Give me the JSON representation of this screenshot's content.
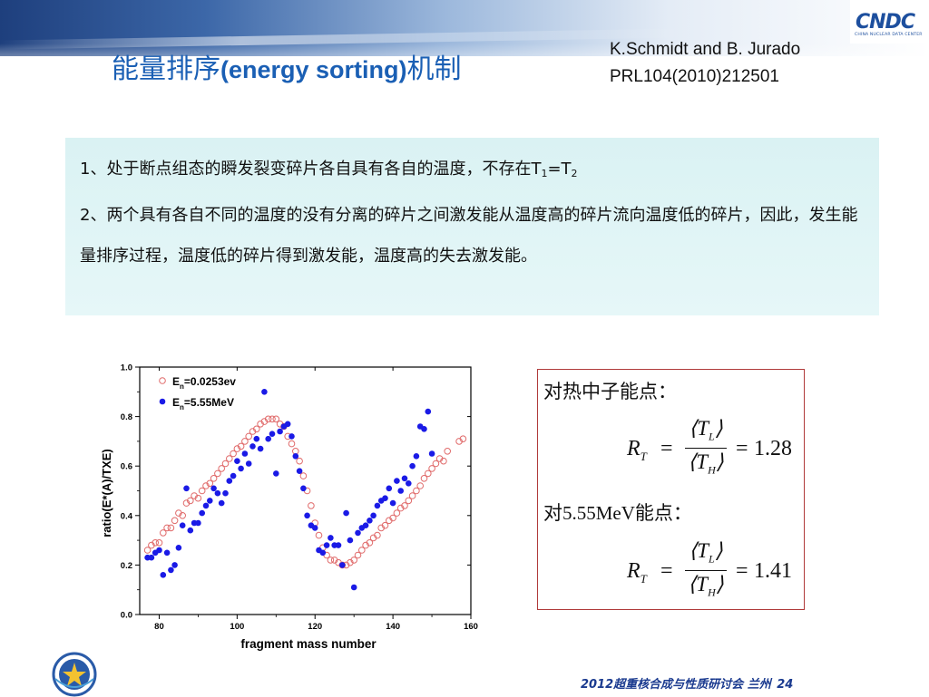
{
  "header": {
    "logo": {
      "text": "CNDC",
      "subtitle": "CHINA NUCLEAR DATA CENTER"
    },
    "reference": {
      "line1": "K.Schmidt and B. Jurado",
      "line2": "PRL104(2010)212501"
    },
    "title_cn_1": "能量排序",
    "title_en": "(energy sorting)",
    "title_cn_2": "机制"
  },
  "info_box": {
    "p1_prefix": "1、处于断点组态的瞬发裂变碎片各自具有各自的温度，不存在T",
    "p1_sub1": "1",
    "p1_eq": "=T",
    "p1_sub2": "2",
    "p2": "2、两个具有各自不同的温度的没有分离的碎片之间激发能从温度高的碎片流向温度低的碎片，因此，发生能量排序过程，温度低的碎片得到激发能，温度高的失去激发能。"
  },
  "chart": {
    "ylabel": "ratio(E*(A)/TXE)",
    "xlabel": "fragment mass number",
    "legend": [
      {
        "label_main": "E",
        "label_sub": "n",
        "label_rest": "=0.0253ev"
      },
      {
        "label_main": "E",
        "label_sub": "n",
        "label_rest": "=5.55MeV"
      }
    ]
  },
  "chart_data": {
    "type": "scatter",
    "x_range": [
      75,
      160
    ],
    "y_range": [
      0.0,
      1.0
    ],
    "y_ticks": [
      "0.0",
      "0.2",
      "0.4",
      "0.6",
      "0.8",
      "1.0"
    ],
    "x_ticks": [
      "80",
      "100",
      "120",
      "140",
      "160"
    ],
    "legend_position": "top-left",
    "series": [
      {
        "name": "E_n=0.0253ev",
        "marker": "open circle",
        "color": "#e06a6a",
        "points": [
          [
            77,
            0.26
          ],
          [
            78,
            0.28
          ],
          [
            79,
            0.29
          ],
          [
            80,
            0.29
          ],
          [
            81,
            0.33
          ],
          [
            82,
            0.35
          ],
          [
            83,
            0.35
          ],
          [
            84,
            0.38
          ],
          [
            85,
            0.41
          ],
          [
            86,
            0.4
          ],
          [
            87,
            0.45
          ],
          [
            88,
            0.46
          ],
          [
            89,
            0.48
          ],
          [
            90,
            0.47
          ],
          [
            91,
            0.5
          ],
          [
            92,
            0.52
          ],
          [
            93,
            0.53
          ],
          [
            94,
            0.55
          ],
          [
            95,
            0.57
          ],
          [
            96,
            0.59
          ],
          [
            97,
            0.61
          ],
          [
            98,
            0.63
          ],
          [
            99,
            0.65
          ],
          [
            100,
            0.67
          ],
          [
            101,
            0.68
          ],
          [
            102,
            0.7
          ],
          [
            103,
            0.72
          ],
          [
            104,
            0.74
          ],
          [
            105,
            0.75
          ],
          [
            106,
            0.77
          ],
          [
            107,
            0.78
          ],
          [
            108,
            0.79
          ],
          [
            109,
            0.79
          ],
          [
            110,
            0.79
          ],
          [
            111,
            0.77
          ],
          [
            112,
            0.76
          ],
          [
            113,
            0.72
          ],
          [
            114,
            0.69
          ],
          [
            115,
            0.66
          ],
          [
            116,
            0.62
          ],
          [
            117,
            0.56
          ],
          [
            118,
            0.5
          ],
          [
            119,
            0.44
          ],
          [
            120,
            0.37
          ],
          [
            121,
            0.32
          ],
          [
            122,
            0.27
          ],
          [
            123,
            0.24
          ],
          [
            124,
            0.22
          ],
          [
            125,
            0.22
          ],
          [
            126,
            0.21
          ],
          [
            127,
            0.2
          ],
          [
            128,
            0.2
          ],
          [
            129,
            0.21
          ],
          [
            130,
            0.22
          ],
          [
            131,
            0.24
          ],
          [
            132,
            0.26
          ],
          [
            133,
            0.28
          ],
          [
            134,
            0.29
          ],
          [
            135,
            0.31
          ],
          [
            136,
            0.32
          ],
          [
            137,
            0.35
          ],
          [
            138,
            0.36
          ],
          [
            139,
            0.38
          ],
          [
            140,
            0.39
          ],
          [
            141,
            0.41
          ],
          [
            142,
            0.43
          ],
          [
            143,
            0.44
          ],
          [
            144,
            0.46
          ],
          [
            145,
            0.48
          ],
          [
            146,
            0.5
          ],
          [
            147,
            0.52
          ],
          [
            148,
            0.55
          ],
          [
            149,
            0.57
          ],
          [
            150,
            0.59
          ],
          [
            151,
            0.61
          ],
          [
            152,
            0.63
          ],
          [
            153,
            0.62
          ],
          [
            154,
            0.66
          ],
          [
            157,
            0.7
          ],
          [
            158,
            0.71
          ]
        ]
      },
      {
        "name": "E_n=5.55MeV",
        "marker": "filled circle",
        "color": "#1a1ae6",
        "points": [
          [
            77,
            0.23
          ],
          [
            78,
            0.23
          ],
          [
            79,
            0.25
          ],
          [
            80,
            0.26
          ],
          [
            81,
            0.16
          ],
          [
            82,
            0.25
          ],
          [
            83,
            0.18
          ],
          [
            84,
            0.2
          ],
          [
            85,
            0.27
          ],
          [
            86,
            0.36
          ],
          [
            87,
            0.51
          ],
          [
            88,
            0.34
          ],
          [
            89,
            0.37
          ],
          [
            90,
            0.37
          ],
          [
            91,
            0.41
          ],
          [
            92,
            0.44
          ],
          [
            93,
            0.46
          ],
          [
            94,
            0.51
          ],
          [
            95,
            0.49
          ],
          [
            96,
            0.45
          ],
          [
            97,
            0.49
          ],
          [
            98,
            0.54
          ],
          [
            99,
            0.56
          ],
          [
            100,
            0.62
          ],
          [
            101,
            0.59
          ],
          [
            102,
            0.65
          ],
          [
            103,
            0.61
          ],
          [
            104,
            0.68
          ],
          [
            105,
            0.71
          ],
          [
            106,
            0.67
          ],
          [
            107,
            0.9
          ],
          [
            108,
            0.71
          ],
          [
            109,
            0.73
          ],
          [
            110,
            0.57
          ],
          [
            111,
            0.74
          ],
          [
            112,
            0.76
          ],
          [
            113,
            0.77
          ],
          [
            114,
            0.72
          ],
          [
            115,
            0.64
          ],
          [
            116,
            0.58
          ],
          [
            117,
            0.51
          ],
          [
            118,
            0.4
          ],
          [
            119,
            0.36
          ],
          [
            120,
            0.35
          ],
          [
            121,
            0.26
          ],
          [
            122,
            0.25
          ],
          [
            123,
            0.28
          ],
          [
            124,
            0.31
          ],
          [
            125,
            0.28
          ],
          [
            126,
            0.28
          ],
          [
            127,
            0.2
          ],
          [
            128,
            0.41
          ],
          [
            129,
            0.3
          ],
          [
            130,
            0.11
          ],
          [
            131,
            0.33
          ],
          [
            132,
            0.35
          ],
          [
            133,
            0.36
          ],
          [
            134,
            0.38
          ],
          [
            135,
            0.4
          ],
          [
            136,
            0.44
          ],
          [
            137,
            0.46
          ],
          [
            138,
            0.47
          ],
          [
            139,
            0.51
          ],
          [
            140,
            0.45
          ],
          [
            141,
            0.54
          ],
          [
            142,
            0.5
          ],
          [
            143,
            0.55
          ],
          [
            144,
            0.53
          ],
          [
            145,
            0.6
          ],
          [
            146,
            0.64
          ],
          [
            147,
            0.76
          ],
          [
            148,
            0.75
          ],
          [
            149,
            0.82
          ],
          [
            150,
            0.65
          ]
        ]
      }
    ]
  },
  "formula_box": {
    "thermal_label": "对热中子能点：",
    "fast_label": "对5.55MeV能点：",
    "formulas": [
      {
        "lhs": "R",
        "lhs_sub": "T",
        "num": "T",
        "num_sub": "L",
        "den": "T",
        "den_sub": "H",
        "value": "1.28"
      },
      {
        "lhs": "R",
        "lhs_sub": "T",
        "num": "T",
        "num_sub": "L",
        "den": "T",
        "den_sub": "H",
        "value": "1.41"
      }
    ]
  },
  "footer": {
    "text": "2012超重核合成与性质研讨会 兰州",
    "page": "24"
  }
}
